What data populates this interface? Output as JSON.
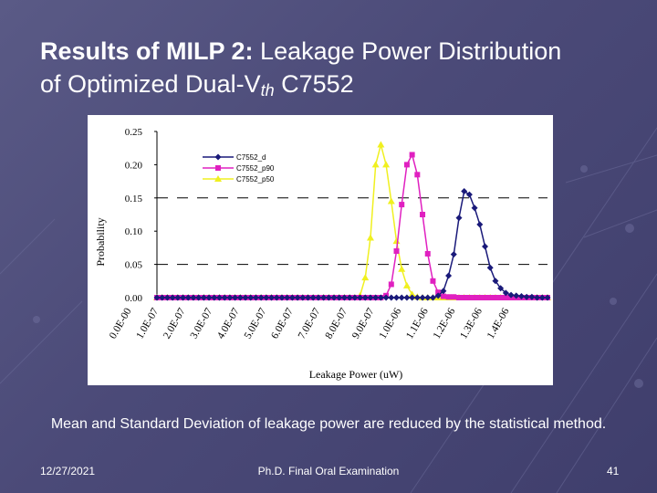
{
  "slide": {
    "title_bold": "Results of MILP 2:",
    "title_rest": " Leakage Power Distribution",
    "title_line2_prefix": "of Optimized Dual-V",
    "title_line2_sub": "th",
    "title_line2_suffix": " C7552",
    "caption": "Mean and Standard Deviation of leakage power are reduced by the statistical method.",
    "footer_date": "12/27/2021",
    "footer_title": "Ph.D. Final Oral Examination",
    "page_number": "41"
  },
  "chart_data": {
    "type": "line",
    "xlabel": "Leakage Power (uW)",
    "ylabel": "Probability",
    "ylim": [
      0,
      0.25
    ],
    "y_ticks": [
      0.0,
      0.05,
      0.1,
      0.15,
      0.2,
      0.25
    ],
    "y_tick_labels": [
      "0.00",
      "0.05",
      "0.10",
      "0.15",
      "0.20",
      "0.25"
    ],
    "dashed_gridlines": [
      0.05,
      0.15
    ],
    "x_tick_labels": [
      "0.0E-00",
      "1.0E-07",
      "2.0E-07",
      "3.0E-07",
      "4.0E-07",
      "5.0E-07",
      "6.0E-07",
      "7.0E-07",
      "8.0E-07",
      "9.0E-07",
      "1.0E-06",
      "1.1E-06",
      "1.2E-06",
      "1.3E-06",
      "1.4E-06"
    ],
    "x_points": [
      0.0,
      0.02,
      0.04,
      0.06,
      0.08,
      0.1,
      0.12,
      0.14,
      0.16,
      0.18,
      0.2,
      0.22,
      0.24,
      0.26,
      0.28,
      0.3,
      0.32,
      0.34,
      0.36,
      0.38,
      0.4,
      0.42,
      0.44,
      0.46,
      0.48,
      0.5,
      0.52,
      0.54,
      0.56,
      0.58,
      0.6,
      0.62,
      0.64,
      0.66,
      0.68,
      0.7,
      0.72,
      0.74,
      0.76,
      0.78,
      0.8,
      0.82,
      0.84,
      0.86,
      0.88,
      0.9,
      0.92,
      0.94,
      0.96,
      0.98,
      1.0,
      1.02,
      1.04,
      1.06,
      1.08,
      1.1,
      1.12,
      1.14,
      1.16,
      1.18,
      1.2,
      1.22,
      1.24,
      1.26,
      1.28,
      1.3,
      1.32,
      1.34,
      1.36,
      1.38,
      1.4,
      1.42,
      1.44,
      1.46,
      1.48,
      1.5
    ],
    "series": [
      {
        "name": "C7552_d",
        "color": "#1a1a7a",
        "marker": "diamond",
        "values": [
          0,
          0,
          0,
          0,
          0,
          0,
          0,
          0,
          0,
          0,
          0,
          0,
          0,
          0,
          0,
          0,
          0,
          0,
          0,
          0,
          0,
          0,
          0,
          0,
          0,
          0,
          0,
          0,
          0,
          0,
          0,
          0,
          0,
          0,
          0,
          0,
          0,
          0,
          0,
          0,
          0,
          0,
          0,
          0,
          0,
          0,
          0,
          0,
          0,
          0,
          0,
          0,
          0,
          0,
          0.003,
          0.01,
          0.033,
          0.065,
          0.12,
          0.16,
          0.155,
          0.135,
          0.11,
          0.077,
          0.045,
          0.025,
          0.014,
          0.007,
          0.004,
          0.003,
          0.002,
          0.001,
          0.001,
          0,
          0,
          0
        ]
      },
      {
        "name": "C7552_p90",
        "color": "#e020c0",
        "marker": "square",
        "values": [
          0,
          0,
          0,
          0,
          0,
          0,
          0,
          0,
          0,
          0,
          0,
          0,
          0,
          0,
          0,
          0,
          0,
          0,
          0,
          0,
          0,
          0,
          0,
          0,
          0,
          0,
          0,
          0,
          0,
          0,
          0,
          0,
          0,
          0,
          0,
          0,
          0,
          0,
          0,
          0,
          0,
          0,
          0,
          0,
          0.003,
          0.02,
          0.07,
          0.14,
          0.2,
          0.215,
          0.185,
          0.125,
          0.066,
          0.025,
          0.008,
          0.002,
          0.001,
          0.001,
          0,
          0,
          0,
          0,
          0,
          0,
          0,
          0,
          0,
          0,
          0,
          0,
          0,
          0,
          0,
          0,
          0,
          0
        ]
      },
      {
        "name": "C7552_p50",
        "color": "#f0f020",
        "marker": "triangle",
        "values": [
          0,
          0,
          0,
          0,
          0,
          0,
          0,
          0,
          0,
          0,
          0,
          0,
          0,
          0,
          0,
          0,
          0,
          0,
          0,
          0,
          0,
          0,
          0,
          0,
          0,
          0,
          0,
          0,
          0,
          0,
          0,
          0,
          0,
          0,
          0,
          0,
          0,
          0,
          0,
          0.003,
          0.03,
          0.09,
          0.2,
          0.23,
          0.2,
          0.145,
          0.085,
          0.043,
          0.018,
          0.005,
          0.001,
          0,
          0,
          0,
          0,
          0,
          0,
          0,
          0,
          0,
          0,
          0,
          0,
          0,
          0,
          0,
          0,
          0,
          0,
          0,
          0,
          0,
          0,
          0,
          0,
          0
        ]
      }
    ]
  }
}
